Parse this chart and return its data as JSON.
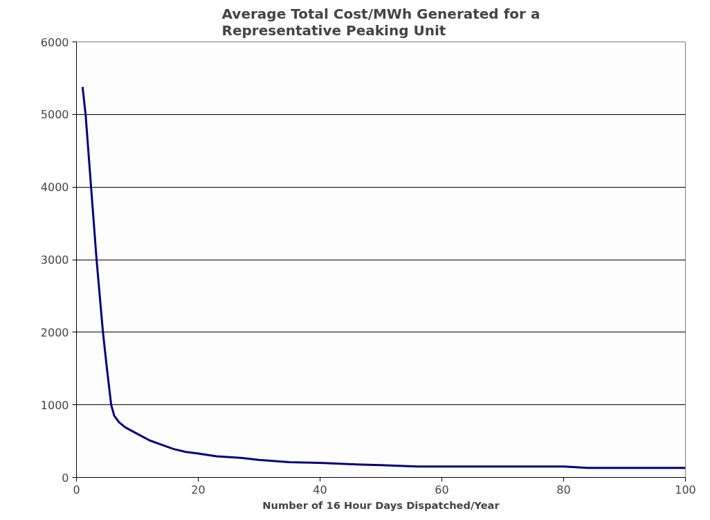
{
  "chart_data": {
    "type": "line",
    "title": "Average Total Cost/MWh Generated for a Representative Peaking Unit",
    "xlabel": "Number of 16 Hour Days Dispatched/Year",
    "series": [
      {
        "color": "#000080",
        "x": [
          1,
          1.5,
          2.4,
          3.3,
          4.35,
          5.0,
          5.7,
          6.2,
          7,
          8,
          10,
          12,
          14,
          16,
          18,
          20,
          23,
          27,
          30,
          35,
          40,
          46,
          50,
          56,
          60,
          70,
          80,
          84,
          90,
          100
        ],
        "values": [
          5380,
          5000,
          4000,
          3000,
          2000,
          1500,
          1000,
          850,
          760,
          690,
          600,
          510,
          450,
          390,
          350,
          330,
          290,
          270,
          240,
          210,
          200,
          180,
          170,
          150,
          150,
          150,
          150,
          130,
          130,
          130
        ]
      }
    ],
    "xlim": [
      0,
      100
    ],
    "xticks": [
      0,
      20,
      40,
      60,
      80,
      100
    ],
    "ylim": [
      0,
      6000
    ],
    "yticks": [
      0,
      1000,
      2000,
      3000,
      4000,
      5000,
      6000
    ],
    "grid": "y",
    "marker": "none",
    "line_style": "solid"
  }
}
